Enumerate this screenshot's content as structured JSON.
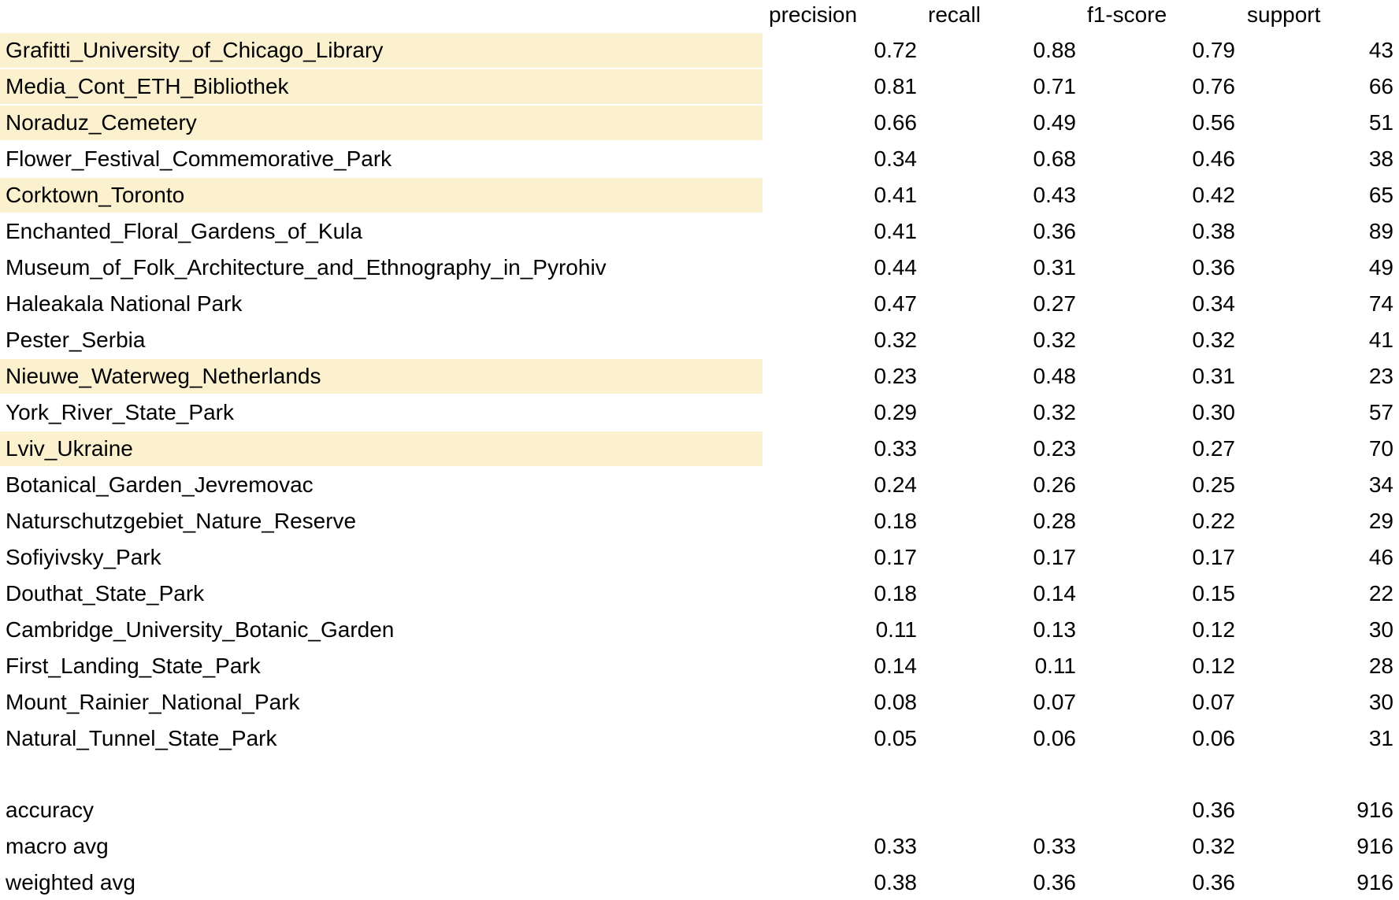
{
  "columns": {
    "precision": "precision",
    "recall": "recall",
    "f1": "f1-score",
    "support": "support"
  },
  "rows": [
    {
      "label": "Grafitti_University_of_Chicago_Library",
      "precision": "0.72",
      "recall": "0.88",
      "f1": "0.79",
      "support": "43",
      "highlighted": true
    },
    {
      "label": "Media_Cont_ETH_Bibliothek",
      "precision": "0.81",
      "recall": "0.71",
      "f1": "0.76",
      "support": "66",
      "highlighted": true
    },
    {
      "label": "Noraduz_Cemetery",
      "precision": "0.66",
      "recall": "0.49",
      "f1": "0.56",
      "support": "51",
      "highlighted": true
    },
    {
      "label": "Flower_Festival_Commemorative_Park",
      "precision": "0.34",
      "recall": "0.68",
      "f1": "0.46",
      "support": "38",
      "highlighted": false
    },
    {
      "label": "Corktown_Toronto",
      "precision": "0.41",
      "recall": "0.43",
      "f1": "0.42",
      "support": "65",
      "highlighted": true
    },
    {
      "label": "Enchanted_Floral_Gardens_of_Kula",
      "precision": "0.41",
      "recall": "0.36",
      "f1": "0.38",
      "support": "89",
      "highlighted": false
    },
    {
      "label": "Museum_of_Folk_Architecture_and_Ethnography_in_Pyrohiv",
      "precision": "0.44",
      "recall": "0.31",
      "f1": "0.36",
      "support": "49",
      "highlighted": false
    },
    {
      "label": "Haleakala National Park",
      "precision": "0.47",
      "recall": "0.27",
      "f1": "0.34",
      "support": "74",
      "highlighted": false
    },
    {
      "label": "Pester_Serbia",
      "precision": "0.32",
      "recall": "0.32",
      "f1": "0.32",
      "support": "41",
      "highlighted": false
    },
    {
      "label": "Nieuwe_Waterweg_Netherlands",
      "precision": "0.23",
      "recall": "0.48",
      "f1": "0.31",
      "support": "23",
      "highlighted": true
    },
    {
      "label": "York_River_State_Park",
      "precision": "0.29",
      "recall": "0.32",
      "f1": "0.30",
      "support": "57",
      "highlighted": false
    },
    {
      "label": "Lviv_Ukraine",
      "precision": "0.33",
      "recall": "0.23",
      "f1": "0.27",
      "support": "70",
      "highlighted": true
    },
    {
      "label": "Botanical_Garden_Jevremovac",
      "precision": "0.24",
      "recall": "0.26",
      "f1": "0.25",
      "support": "34",
      "highlighted": false
    },
    {
      "label": "Naturschutzgebiet_Nature_Reserve",
      "precision": "0.18",
      "recall": "0.28",
      "f1": "0.22",
      "support": "29",
      "highlighted": false
    },
    {
      "label": "Sofiyivsky_Park",
      "precision": "0.17",
      "recall": "0.17",
      "f1": "0.17",
      "support": "46",
      "highlighted": false
    },
    {
      "label": "Douthat_State_Park",
      "precision": "0.18",
      "recall": "0.14",
      "f1": "0.15",
      "support": "22",
      "highlighted": false
    },
    {
      "label": "Cambridge_University_Botanic_Garden",
      "precision": "0.11",
      "recall": "0.13",
      "f1": "0.12",
      "support": "30",
      "highlighted": false
    },
    {
      "label": "First_Landing_State_Park",
      "precision": "0.14",
      "recall": "0.11",
      "f1": "0.12",
      "support": "28",
      "highlighted": false
    },
    {
      "label": "Mount_Rainier_National_Park",
      "precision": "0.08",
      "recall": "0.07",
      "f1": "0.07",
      "support": "30",
      "highlighted": false
    },
    {
      "label": "Natural_Tunnel_State_Park",
      "precision": "0.05",
      "recall": "0.06",
      "f1": "0.06",
      "support": "31",
      "highlighted": false
    }
  ],
  "summary": [
    {
      "label": "accuracy",
      "precision": "",
      "recall": "",
      "f1": "0.36",
      "support": "916"
    },
    {
      "label": "macro avg",
      "precision": "0.33",
      "recall": "0.33",
      "f1": "0.32",
      "support": "916"
    },
    {
      "label": "weighted avg",
      "precision": "0.38",
      "recall": "0.36",
      "f1": "0.36",
      "support": "916"
    }
  ],
  "colors": {
    "highlight": "#fcf1cf",
    "text": "#000000",
    "background": "#ffffff"
  }
}
